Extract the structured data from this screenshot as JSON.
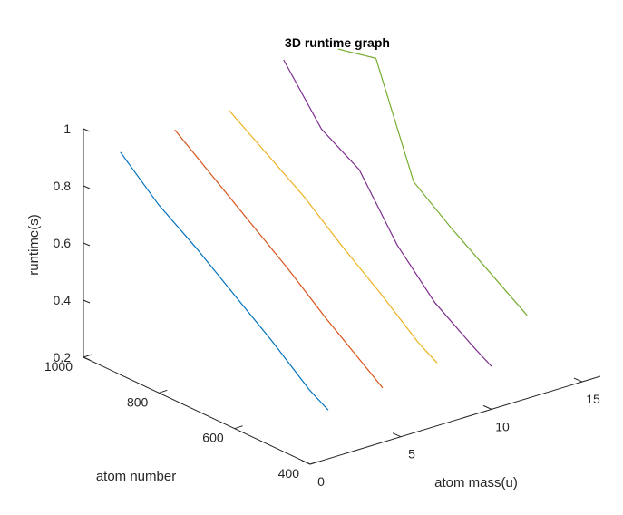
{
  "chart_data": {
    "type": "line",
    "title": "3D runtime graph",
    "xlabel": "atom mass(u)",
    "ylabel": "atom number",
    "zlabel": "runtime(s)",
    "x_ticks": [
      "0",
      "5",
      "10",
      "15"
    ],
    "y_ticks": [
      "400",
      "600",
      "800",
      "1000"
    ],
    "z_ticks": [
      "0.2",
      "0.4",
      "0.6",
      "0.8",
      "1"
    ],
    "xlim": [
      0,
      16
    ],
    "ylim": [
      400,
      1000
    ],
    "zlim": [
      0.2,
      1
    ],
    "grid": false,
    "series": [
      {
        "color": "#0072BD",
        "x": [
          1,
          1,
          1,
          1,
          1,
          1,
          1
        ],
        "y": [
          950,
          850,
          750,
          650,
          550,
          450,
          400
        ],
        "z": [
          0.93,
          0.81,
          0.72,
          0.62,
          0.52,
          0.41,
          0.37
        ]
      },
      {
        "color": "#D95319",
        "x": [
          4,
          4,
          4,
          4,
          4,
          4,
          4
        ],
        "y": [
          950,
          850,
          750,
          650,
          550,
          450,
          400
        ],
        "z": [
          0.95,
          0.85,
          0.75,
          0.65,
          0.54,
          0.44,
          0.39
        ]
      },
      {
        "color": "#EDB120",
        "x": [
          7,
          7,
          7,
          7,
          7,
          7,
          7
        ],
        "y": [
          950,
          850,
          750,
          650,
          550,
          450,
          400
        ],
        "z": [
          0.96,
          0.87,
          0.78,
          0.67,
          0.57,
          0.46,
          0.42
        ]
      },
      {
        "color": "#7E2F8E",
        "x": [
          10,
          10,
          10,
          10,
          10,
          10,
          10
        ],
        "y": [
          950,
          850,
          750,
          650,
          550,
          450,
          400
        ],
        "z": [
          1.08,
          0.9,
          0.82,
          0.62,
          0.48,
          0.39,
          0.35
        ]
      },
      {
        "color": "#77AC30",
        "x": [
          13,
          13,
          13,
          13,
          13,
          13
        ],
        "y": [
          950,
          850,
          750,
          650,
          550,
          450
        ],
        "z": [
          1.06,
          1.09,
          0.72,
          0.62,
          0.53,
          0.44
        ]
      }
    ]
  }
}
